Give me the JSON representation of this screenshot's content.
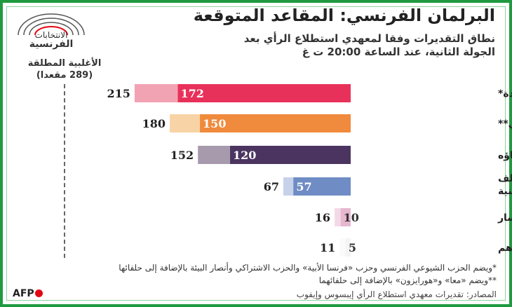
{
  "header": {
    "title": "البرلمان الفرنسي: المقاعد المتوقعة",
    "subtitle": "نطاق التقديرات وفقا لمعهدي استطلاع الرأي بعد الجولة الثانية، عند الساعة 20:00 ت غ"
  },
  "logo": {
    "line1": "الانتخابات",
    "line2": "الفرنسية"
  },
  "majority": {
    "label": "الأغلبية المطلقة",
    "seats": "(289 مقعدا)",
    "value": 289
  },
  "chart_data": {
    "type": "bar",
    "orientation": "horizontal-range",
    "categories": [
      "الجبهة الشعبية الجديدة*",
      "المعسكر الرئاسي**",
      "التجمع الوطني وحلفاؤه",
      "الجمهوريون ومختلف الأحزاب اليمينية",
      "مختلف اليسار",
      "غيرهم"
    ],
    "low": [
      172,
      150,
      120,
      57,
      10,
      5
    ],
    "high": [
      215,
      180,
      152,
      67,
      16,
      11
    ],
    "colors_low": [
      "#e8315a",
      "#f08a3c",
      "#4b3560",
      "#6f8cc4",
      "#e7b7d0",
      "#f4f4f4"
    ],
    "colors_high": [
      "#f2a3b3",
      "#f8d3a6",
      "#a89aad",
      "#c6d2ea",
      "#f3d9e7",
      "#fafafa"
    ],
    "reference_line": 289
  },
  "footnotes": {
    "note1": "*ويضم الحزب الشيوعي الفرنسي وحزب «فرنسا الأبية» والحزب الاشتراكي وأنصار البيئة بالإضافة إلى حلفائها",
    "note2": "**ويضم «معا» و«هورايزون» بالإضافة إلى حلفائهما",
    "source": "المصادر: تقديرات معهدي استطلاع الرأي إيبسوس وإيفوب"
  },
  "brand": {
    "name": "AFP",
    "accent": "#1f9a3f"
  }
}
